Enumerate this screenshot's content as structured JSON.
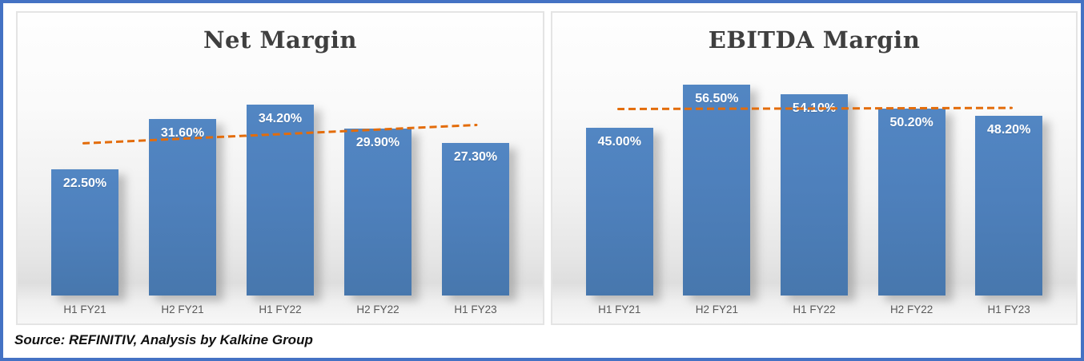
{
  "source_note": "Source: REFINITIV, Analysis by Kalkine Group",
  "colors": {
    "bar_fill": "#4F81BD",
    "trendline": "#E36C0A",
    "outer_border": "#4472C4",
    "title_text": "#3F3F3F",
    "axis_text": "#595959"
  },
  "chart_data": [
    {
      "type": "bar",
      "title": "Net Margin",
      "categories": [
        "H1 FY21",
        "H2 FY21",
        "H1 FY22",
        "H2 FY22",
        "H1 FY23"
      ],
      "values": [
        22.5,
        31.6,
        34.2,
        29.9,
        27.3
      ],
      "data_labels": [
        "22.50%",
        "31.60%",
        "34.20%",
        "29.90%",
        "27.30%"
      ],
      "ylim": [
        0,
        40
      ],
      "grid": false,
      "legend": "none",
      "trendline": {
        "style": "dashed",
        "color": "#E36C0A",
        "start_value_pct": 27.4,
        "end_value_pct": 30.7
      }
    },
    {
      "type": "bar",
      "title": "EBITDA Margin",
      "categories": [
        "H1 FY21",
        "H2 FY21",
        "H1 FY22",
        "H2 FY22",
        "H1 FY23"
      ],
      "values": [
        45.0,
        56.5,
        54.1,
        50.2,
        48.2
      ],
      "data_labels": [
        "45.00%",
        "56.50%",
        "54.10%",
        "50.20%",
        "48.20%"
      ],
      "ylim": [
        0,
        60
      ],
      "grid": false,
      "legend": "none",
      "trendline": {
        "style": "dashed",
        "color": "#E36C0A",
        "start_value_pct": 50.3,
        "end_value_pct": 50.6
      }
    }
  ]
}
